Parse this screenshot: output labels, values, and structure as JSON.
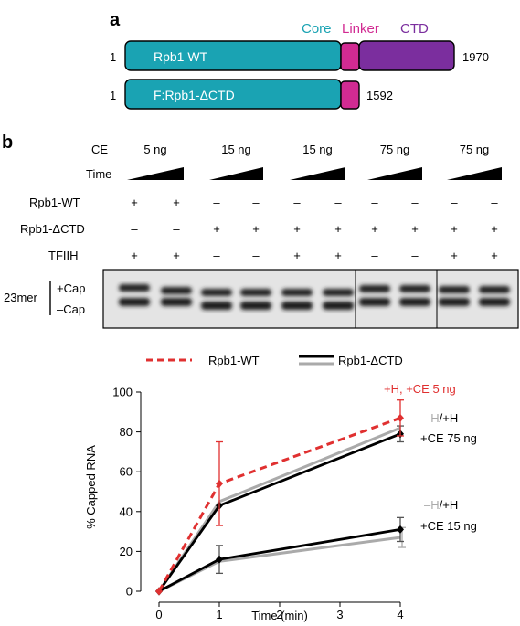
{
  "panel_a": {
    "label": "a",
    "domains": {
      "core": "Core",
      "linker": "Linker",
      "ctd": "CTD"
    },
    "colors": {
      "core": "#1aa3b3",
      "linker": "#d12b92",
      "ctd": "#7b2e9e"
    },
    "constructs": [
      {
        "start": "1",
        "name": "Rpb1 WT",
        "end": "1970"
      },
      {
        "start": "1",
        "name": "F:Rpb1-ΔCTD",
        "end": "1592"
      }
    ]
  },
  "panel_b": {
    "label": "b",
    "row_labels": {
      "ce": "CE",
      "time": "Time",
      "wt": "Rpb1-WT",
      "dctd": "Rpb1-ΔCTD",
      "tfiih": "TFIIH"
    },
    "ce_amounts": [
      "5 ng",
      "15 ng",
      "15 ng",
      "75 ng",
      "75 ng"
    ],
    "lanes": {
      "wt": [
        "+",
        "+",
        "–",
        "–",
        "–",
        "–",
        "–",
        "–",
        "–",
        "–"
      ],
      "dctd": [
        "–",
        "–",
        "+",
        "+",
        "+",
        "+",
        "+",
        "+",
        "+",
        "+"
      ],
      "tfiih": [
        "+",
        "+",
        "–",
        "–",
        "+",
        "+",
        "–",
        "–",
        "+",
        "+"
      ]
    },
    "gel_labels": {
      "size": "23mer",
      "cap_plus": "+Cap",
      "cap_minus": "–Cap"
    }
  },
  "legend": {
    "wt": "Rpb1-WT",
    "dctd": "Rpb1-ΔCTD"
  },
  "annotations": {
    "ce5": "+H, +CE 5 ng",
    "ce75_minus_h": "–H",
    "ce75_slash_h": "/+H",
    "ce75_ce": "+CE 75 ng",
    "ce15_minus_h": "–H",
    "ce15_slash_h": "/+H",
    "ce15_ce": "+CE 15 ng"
  },
  "chart_data": {
    "type": "line",
    "xlabel": "Time (min)",
    "ylabel": "% Capped RNA",
    "xlim": [
      0,
      4
    ],
    "ylim": [
      0,
      100
    ],
    "xticks": [
      0,
      1,
      2,
      3,
      4
    ],
    "yticks": [
      0,
      20,
      40,
      60,
      80,
      100
    ],
    "grid": false,
    "legend_position": "top",
    "series": [
      {
        "name": "Rpb1-WT",
        "color": "#e03030",
        "style": "dashed",
        "marker": "diamond",
        "x": [
          0,
          1,
          4
        ],
        "y": [
          0,
          54,
          87
        ],
        "err": [
          0,
          21,
          9
        ]
      },
      {
        "color": "#aaaaaa",
        "style": "solid",
        "marker": "none",
        "x": [
          0,
          1,
          4
        ],
        "y": [
          0,
          45,
          82
        ],
        "err": [
          0,
          0,
          0
        ]
      },
      {
        "color": "#000000",
        "style": "solid",
        "marker": "diamond",
        "x": [
          0,
          1,
          4
        ],
        "y": [
          0,
          43,
          79
        ],
        "err": [
          0,
          0,
          4
        ]
      },
      {
        "color": "#aaaaaa",
        "style": "solid",
        "marker": "none",
        "x": [
          0,
          1,
          4
        ],
        "y": [
          0,
          15,
          27
        ],
        "err": [
          0,
          0,
          5
        ]
      },
      {
        "color": "#000000",
        "style": "solid",
        "marker": "diamond",
        "x": [
          0,
          1,
          4
        ],
        "y": [
          0,
          16,
          31
        ],
        "err": [
          0,
          7,
          6
        ]
      }
    ]
  }
}
